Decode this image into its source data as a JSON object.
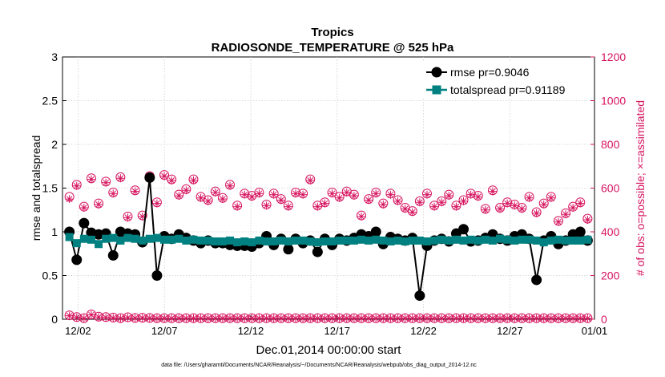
{
  "chart_data": {
    "type": "line",
    "title": "Tropics",
    "subtitle": "RADIOSONDE_TEMPERATURE @ 525 hPa",
    "xlabel": "Dec.01,2014 00:00:00 start",
    "ylabel": "rmse and totalspread",
    "y2label": "# of obs: o=possible; ×=assimilated",
    "footnote": "data file: /Users/gharamti/Documents/NCAR/Reanalysis/~/Documents/NCAR/Reanalysis/webpub/obs_diag_output_2014-12.nc",
    "xlim": [
      0.6,
      31.4
    ],
    "ylim": [
      0,
      3
    ],
    "y2lim": [
      0,
      1200
    ],
    "xticks": [
      1.5,
      6.5,
      11.5,
      16.5,
      21.5,
      26.5,
      31.5
    ],
    "xticklabels": [
      "12/02",
      "12/07",
      "12/12",
      "12/17",
      "12/22",
      "12/27",
      "01/01"
    ],
    "yticks": [
      0,
      0.5,
      1,
      1.5,
      2,
      2.5,
      3
    ],
    "yticklabels": [
      "0",
      "0.5",
      "1",
      "1.5",
      "2",
      "2.5",
      "3"
    ],
    "y2ticks": [
      0,
      200,
      400,
      600,
      800,
      1000,
      1200
    ],
    "y2ticklabels": [
      "0",
      "200",
      "400",
      "600",
      "800",
      "1000",
      "1200"
    ],
    "legend_position": "top-right",
    "series": [
      {
        "name": "rmse pr=0.9046",
        "color": "#000000",
        "values": [
          1.0,
          0.68,
          1.1,
          0.99,
          0.97,
          0.98,
          0.73,
          1.0,
          0.98,
          0.97,
          0.88,
          1.62,
          0.5,
          0.95,
          0.92,
          0.97,
          0.93,
          0.9,
          0.87,
          0.9,
          0.87,
          0.87,
          0.85,
          0.84,
          0.84,
          0.83,
          0.87,
          0.95,
          0.85,
          0.92,
          0.8,
          0.92,
          0.87,
          0.9,
          0.77,
          0.92,
          0.85,
          0.92,
          0.9,
          0.93,
          0.97,
          0.95,
          1.0,
          0.86,
          0.94,
          0.92,
          0.9,
          0.93,
          0.27,
          0.84,
          0.9,
          0.92,
          0.89,
          0.98,
          1.03,
          0.89,
          0.9,
          0.93,
          0.97,
          0.92,
          0.9,
          0.95,
          0.97,
          0.92,
          0.45,
          0.9,
          0.95,
          0.86,
          0.9,
          0.97,
          1.0,
          0.9
        ]
      },
      {
        "name": "totalspread pr=0.91189",
        "color": "#008080",
        "values": [
          0.94,
          0.87,
          0.92,
          0.91,
          0.86,
          0.92,
          0.93,
          0.9,
          0.93,
          0.92,
          0.9,
          0.92,
          0.93,
          0.91,
          0.91,
          0.92,
          0.9,
          0.91,
          0.9,
          0.9,
          0.89,
          0.89,
          0.9,
          0.88,
          0.89,
          0.88,
          0.9,
          0.89,
          0.89,
          0.9,
          0.89,
          0.9,
          0.9,
          0.89,
          0.88,
          0.89,
          0.89,
          0.9,
          0.9,
          0.9,
          0.91,
          0.9,
          0.91,
          0.9,
          0.89,
          0.9,
          0.89,
          0.9,
          0.9,
          0.89,
          0.9,
          0.91,
          0.9,
          0.91,
          0.9,
          0.91,
          0.9,
          0.91,
          0.9,
          0.92,
          0.91,
          0.9,
          0.91,
          0.91,
          0.9,
          0.88,
          0.9,
          0.91,
          0.9,
          0.9,
          0.9,
          0.91
        ]
      }
    ],
    "obs_series": [
      {
        "name": "possible",
        "axis": "right",
        "marker": "circle",
        "color": "#d6145f",
        "values": [
          560,
          615,
          515,
          645,
          530,
          630,
          580,
          650,
          470,
          590,
          475,
          655,
          535,
          660,
          640,
          570,
          595,
          640,
          560,
          545,
          585,
          555,
          615,
          520,
          575,
          565,
          580,
          525,
          575,
          550,
          520,
          580,
          575,
          640,
          520,
          535,
          580,
          560,
          585,
          570,
          475,
          550,
          580,
          530,
          575,
          545,
          510,
          495,
          540,
          575,
          520,
          540,
          570,
          520,
          545,
          575,
          565,
          505,
          590,
          510,
          535,
          525,
          510,
          560,
          490,
          530,
          560,
          450,
          485,
          515,
          535,
          460
        ]
      },
      {
        "name": "assimilated",
        "axis": "right",
        "marker": "asterisk",
        "color": "#d6145f",
        "values": [
          550,
          610,
          510,
          640,
          525,
          625,
          575,
          645,
          465,
          585,
          470,
          650,
          530,
          655,
          635,
          565,
          590,
          635,
          555,
          540,
          580,
          550,
          610,
          515,
          570,
          560,
          575,
          520,
          570,
          545,
          515,
          575,
          570,
          635,
          515,
          530,
          575,
          555,
          580,
          565,
          470,
          545,
          575,
          525,
          570,
          540,
          505,
          490,
          535,
          570,
          515,
          535,
          565,
          515,
          540,
          570,
          560,
          500,
          585,
          505,
          530,
          520,
          505,
          555,
          485,
          525,
          555,
          445,
          480,
          510,
          530,
          455
        ]
      },
      {
        "name": "possible-low",
        "axis": "right",
        "marker": "circle",
        "color": "#d6145f",
        "values": [
          18,
          10,
          5,
          22,
          12,
          10,
          8,
          5,
          9,
          6,
          7,
          6,
          5,
          5,
          5,
          5,
          5,
          5,
          5,
          5,
          5,
          5,
          5,
          5,
          5,
          5,
          5,
          5,
          5,
          5,
          5,
          5,
          5,
          5,
          5,
          5,
          5,
          5,
          5,
          5,
          5,
          5,
          5,
          5,
          5,
          5,
          5,
          5,
          5,
          5,
          5,
          5,
          5,
          5,
          5,
          5,
          5,
          5,
          5,
          5,
          5,
          5,
          5,
          5,
          5,
          5,
          5,
          5,
          5,
          5,
          5,
          5
        ]
      },
      {
        "name": "assimilated-low",
        "axis": "right",
        "marker": "asterisk",
        "color": "#d6145f",
        "values": [
          16,
          8,
          4,
          20,
          10,
          8,
          6,
          4,
          7,
          5,
          6,
          5,
          4,
          4,
          4,
          4,
          4,
          4,
          4,
          4,
          4,
          4,
          4,
          4,
          4,
          4,
          4,
          4,
          4,
          4,
          4,
          4,
          4,
          4,
          4,
          4,
          4,
          4,
          4,
          4,
          4,
          4,
          4,
          4,
          4,
          4,
          4,
          4,
          4,
          4,
          4,
          4,
          4,
          4,
          4,
          4,
          4,
          4,
          4,
          4,
          4,
          4,
          4,
          4,
          4,
          4,
          4,
          4,
          4,
          4,
          4,
          4
        ]
      }
    ]
  }
}
